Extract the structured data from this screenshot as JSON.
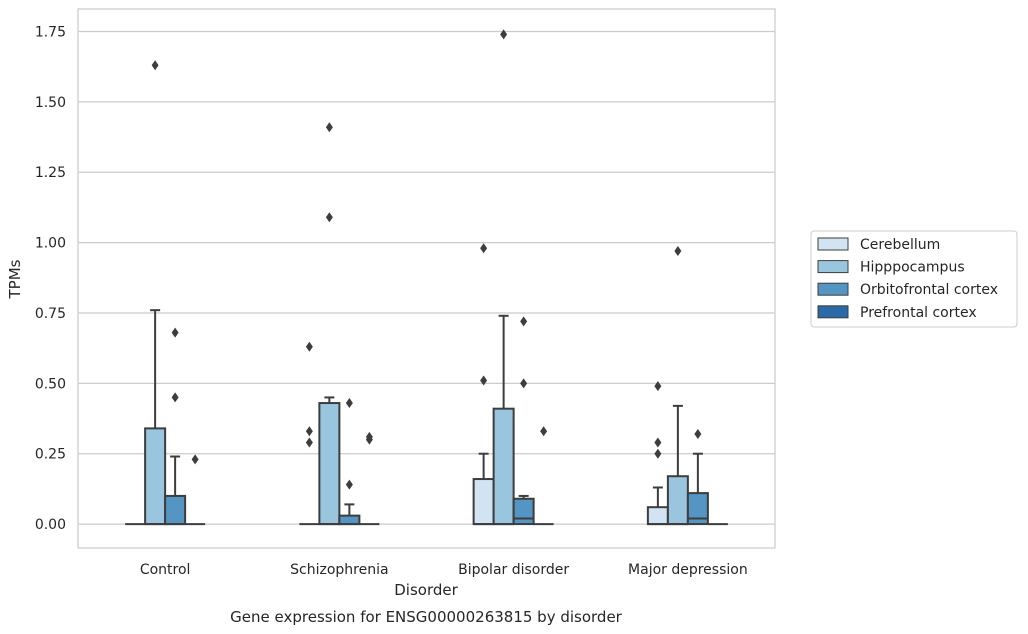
{
  "chart_data": {
    "type": "box",
    "title": "Gene expression for ENSG00000263815 by disorder",
    "xlabel": "Disorder",
    "ylabel": "TPMs",
    "ylim": [
      -0.085,
      1.83
    ],
    "yticks": [
      "0.00",
      "0.25",
      "0.50",
      "0.75",
      "1.00",
      "1.25",
      "1.50",
      "1.75"
    ],
    "grid": true,
    "legend_position": "right",
    "categories": [
      "Control",
      "Schizophrenia",
      "Bipolar disorder",
      "Major depression"
    ],
    "series": [
      {
        "name": "Cerebellum",
        "color": "#d2e3f3",
        "boxes": [
          {
            "q1": 0,
            "median": 0,
            "q3": 0,
            "whisker_low": 0,
            "whisker_high": 0,
            "outliers": []
          },
          {
            "q1": 0,
            "median": 0,
            "q3": 0,
            "whisker_low": 0,
            "whisker_high": 0,
            "outliers": [
              0.29,
              0.33,
              0.63
            ]
          },
          {
            "q1": 0,
            "median": 0,
            "q3": 0.16,
            "whisker_low": 0,
            "whisker_high": 0.25,
            "outliers": [
              0.51,
              0.98
            ]
          },
          {
            "q1": 0,
            "median": 0,
            "q3": 0.06,
            "whisker_low": 0,
            "whisker_high": 0.13,
            "outliers": [
              0.25,
              0.29,
              0.49
            ]
          }
        ]
      },
      {
        "name": "Hipppocampus",
        "color": "#9ac5df",
        "boxes": [
          {
            "q1": 0,
            "median": 0,
            "q3": 0.34,
            "whisker_low": 0,
            "whisker_high": 0.76,
            "outliers": [
              1.63
            ]
          },
          {
            "q1": 0,
            "median": 0,
            "q3": 0.43,
            "whisker_low": 0,
            "whisker_high": 0.45,
            "outliers": [
              1.09,
              1.41
            ]
          },
          {
            "q1": 0,
            "median": 0,
            "q3": 0.41,
            "whisker_low": 0,
            "whisker_high": 0.74,
            "outliers": [
              1.74
            ]
          },
          {
            "q1": 0,
            "median": 0,
            "q3": 0.17,
            "whisker_low": 0,
            "whisker_high": 0.42,
            "outliers": [
              0.97
            ]
          }
        ]
      },
      {
        "name": "Orbitofrontal cortex",
        "color": "#5495c4",
        "boxes": [
          {
            "q1": 0,
            "median": 0,
            "q3": 0.1,
            "whisker_low": 0,
            "whisker_high": 0.24,
            "outliers": [
              0.45,
              0.68
            ]
          },
          {
            "q1": 0,
            "median": 0,
            "q3": 0.03,
            "whisker_low": 0,
            "whisker_high": 0.07,
            "outliers": [
              0.14,
              0.43
            ]
          },
          {
            "q1": 0,
            "median": 0.02,
            "q3": 0.09,
            "whisker_low": 0,
            "whisker_high": 0.1,
            "outliers": [
              0.5,
              0.72
            ]
          },
          {
            "q1": 0,
            "median": 0.02,
            "q3": 0.11,
            "whisker_low": 0,
            "whisker_high": 0.25,
            "outliers": [
              0.32
            ]
          }
        ]
      },
      {
        "name": "Prefrontal cortex",
        "color": "#2b6aa8",
        "boxes": [
          {
            "q1": 0,
            "median": 0,
            "q3": 0,
            "whisker_low": 0,
            "whisker_high": 0,
            "outliers": [
              0.23
            ]
          },
          {
            "q1": 0,
            "median": 0,
            "q3": 0,
            "whisker_low": 0,
            "whisker_high": 0,
            "outliers": [
              0.3,
              0.31
            ]
          },
          {
            "q1": 0,
            "median": 0,
            "q3": 0,
            "whisker_low": 0,
            "whisker_high": 0,
            "outliers": [
              0.33
            ]
          },
          {
            "q1": 0,
            "median": 0,
            "q3": 0,
            "whisker_low": 0,
            "whisker_high": 0,
            "outliers": []
          }
        ]
      }
    ]
  }
}
